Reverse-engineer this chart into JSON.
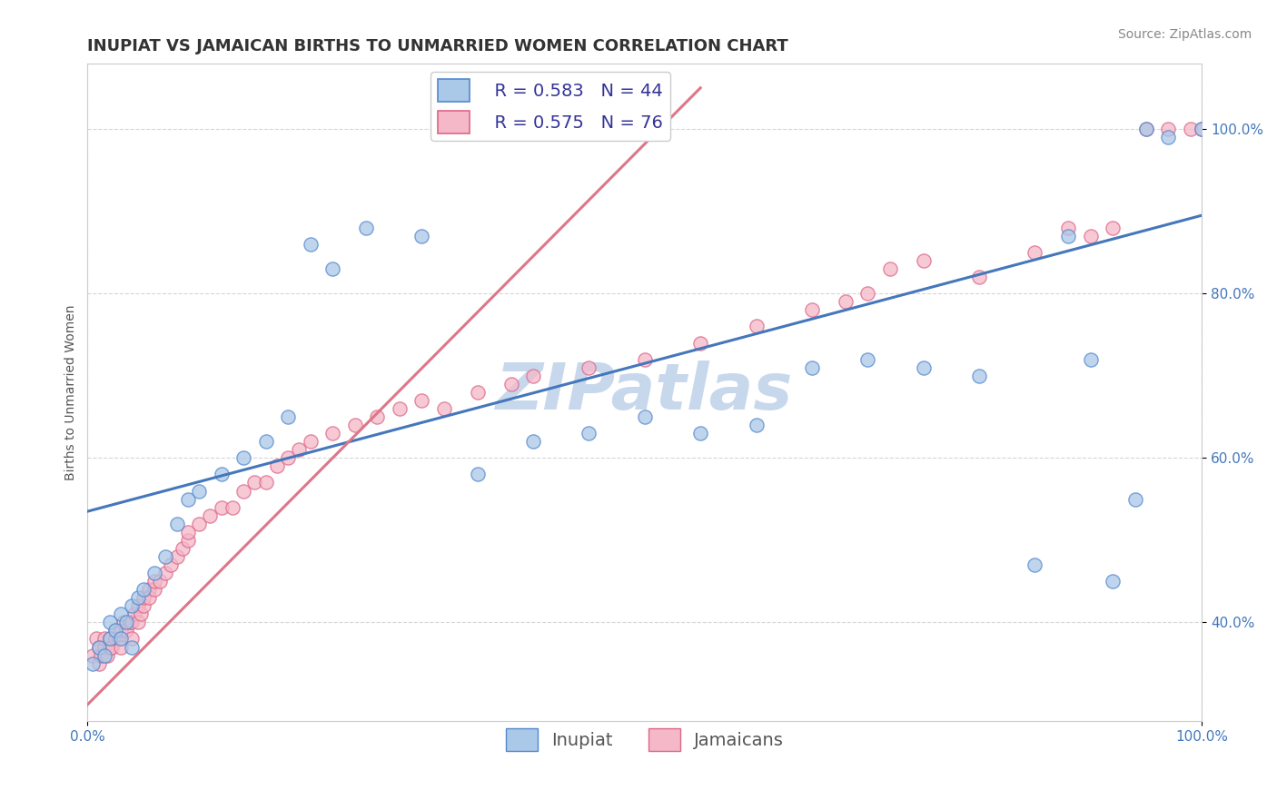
{
  "title": "INUPIAT VS JAMAICAN BIRTHS TO UNMARRIED WOMEN CORRELATION CHART",
  "source": "Source: ZipAtlas.com",
  "ylabel": "Births to Unmarried Women",
  "xlim": [
    0,
    1
  ],
  "ylim": [
    0.28,
    1.08
  ],
  "inupiat_color": "#aac8e8",
  "jamaican_color": "#f4b8c8",
  "inupiat_edge_color": "#5588cc",
  "jamaican_edge_color": "#dd6688",
  "inupiat_line_color": "#4477bb",
  "jamaican_line_color": "#dd7788",
  "legend_r_inupiat": "R = 0.583",
  "legend_n_inupiat": "N = 44",
  "legend_r_jamaican": "R = 0.575",
  "legend_n_jamaican": "N = 76",
  "watermark": "ZIPatlas",
  "grid_color": "#cccccc",
  "background_color": "#ffffff",
  "title_fontsize": 13,
  "axis_label_fontsize": 10,
  "tick_fontsize": 11,
  "legend_fontsize": 14,
  "watermark_fontsize": 52,
  "watermark_color": "#c8d8ec",
  "source_fontsize": 10,
  "ytick_labels": [
    "40.0%",
    "60.0%",
    "80.0%",
    "100.0%"
  ],
  "ytick_values": [
    0.4,
    0.6,
    0.8,
    1.0
  ],
  "inupiat_x": [
    0.005,
    0.01,
    0.015,
    0.02,
    0.02,
    0.025,
    0.03,
    0.03,
    0.035,
    0.04,
    0.04,
    0.045,
    0.05,
    0.06,
    0.07,
    0.08,
    0.09,
    0.1,
    0.12,
    0.14,
    0.16,
    0.18,
    0.2,
    0.22,
    0.25,
    0.3,
    0.35,
    0.4,
    0.45,
    0.5,
    0.55,
    0.6,
    0.65,
    0.7,
    0.75,
    0.8,
    0.85,
    0.88,
    0.9,
    0.92,
    0.94,
    0.95,
    0.97,
    1.0
  ],
  "inupiat_y": [
    0.35,
    0.37,
    0.36,
    0.38,
    0.4,
    0.39,
    0.38,
    0.41,
    0.4,
    0.37,
    0.42,
    0.43,
    0.44,
    0.46,
    0.48,
    0.52,
    0.55,
    0.56,
    0.58,
    0.6,
    0.62,
    0.65,
    0.86,
    0.83,
    0.88,
    0.87,
    0.58,
    0.62,
    0.63,
    0.65,
    0.63,
    0.64,
    0.71,
    0.72,
    0.71,
    0.7,
    0.47,
    0.87,
    0.72,
    0.45,
    0.55,
    1.0,
    0.99,
    1.0
  ],
  "jamaican_x": [
    0.005,
    0.008,
    0.01,
    0.01,
    0.012,
    0.015,
    0.015,
    0.018,
    0.02,
    0.02,
    0.022,
    0.025,
    0.025,
    0.028,
    0.03,
    0.03,
    0.032,
    0.035,
    0.038,
    0.04,
    0.04,
    0.042,
    0.045,
    0.045,
    0.048,
    0.05,
    0.05,
    0.055,
    0.055,
    0.06,
    0.06,
    0.065,
    0.07,
    0.075,
    0.08,
    0.085,
    0.09,
    0.09,
    0.1,
    0.11,
    0.12,
    0.13,
    0.14,
    0.15,
    0.16,
    0.17,
    0.18,
    0.19,
    0.2,
    0.22,
    0.24,
    0.26,
    0.28,
    0.3,
    0.32,
    0.35,
    0.38,
    0.4,
    0.45,
    0.5,
    0.55,
    0.6,
    0.65,
    0.68,
    0.7,
    0.72,
    0.75,
    0.8,
    0.85,
    0.88,
    0.9,
    0.92,
    0.95,
    0.97,
    0.99,
    1.0
  ],
  "jamaican_y": [
    0.36,
    0.38,
    0.35,
    0.37,
    0.36,
    0.37,
    0.38,
    0.36,
    0.37,
    0.38,
    0.37,
    0.38,
    0.39,
    0.38,
    0.37,
    0.39,
    0.4,
    0.39,
    0.4,
    0.38,
    0.4,
    0.41,
    0.4,
    0.42,
    0.41,
    0.42,
    0.43,
    0.44,
    0.43,
    0.44,
    0.45,
    0.45,
    0.46,
    0.47,
    0.48,
    0.49,
    0.5,
    0.51,
    0.52,
    0.53,
    0.54,
    0.54,
    0.56,
    0.57,
    0.57,
    0.59,
    0.6,
    0.61,
    0.62,
    0.63,
    0.64,
    0.65,
    0.66,
    0.67,
    0.66,
    0.68,
    0.69,
    0.7,
    0.71,
    0.72,
    0.74,
    0.76,
    0.78,
    0.79,
    0.8,
    0.83,
    0.84,
    0.82,
    0.85,
    0.88,
    0.87,
    0.88,
    1.0,
    1.0,
    1.0,
    1.0
  ],
  "inupiat_line_x0": 0.0,
  "inupiat_line_y0": 0.535,
  "inupiat_line_x1": 1.0,
  "inupiat_line_y1": 0.895,
  "jamaican_line_x0": 0.0,
  "jamaican_line_y0": 0.3,
  "jamaican_line_x1": 0.55,
  "jamaican_line_y1": 1.05
}
